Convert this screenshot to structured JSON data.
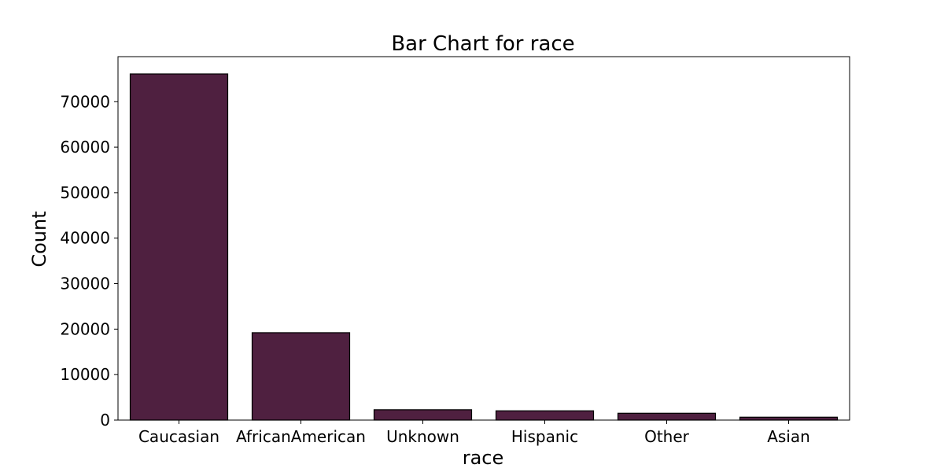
{
  "chart_data": {
    "type": "bar",
    "title": "Bar Chart for race",
    "xlabel": "race",
    "ylabel": "Count",
    "categories": [
      "Caucasian",
      "AfricanAmerican",
      "Unknown",
      "Hispanic",
      "Other",
      "Asian"
    ],
    "values": [
      76099,
      19210,
      2273,
      2037,
      1506,
      641
    ],
    "ylim": [
      0,
      79904
    ],
    "yticks": [
      0,
      10000,
      20000,
      30000,
      40000,
      50000,
      60000,
      70000
    ],
    "grid": false,
    "bar_color": "#4f2040",
    "edge_color": "#000000"
  }
}
